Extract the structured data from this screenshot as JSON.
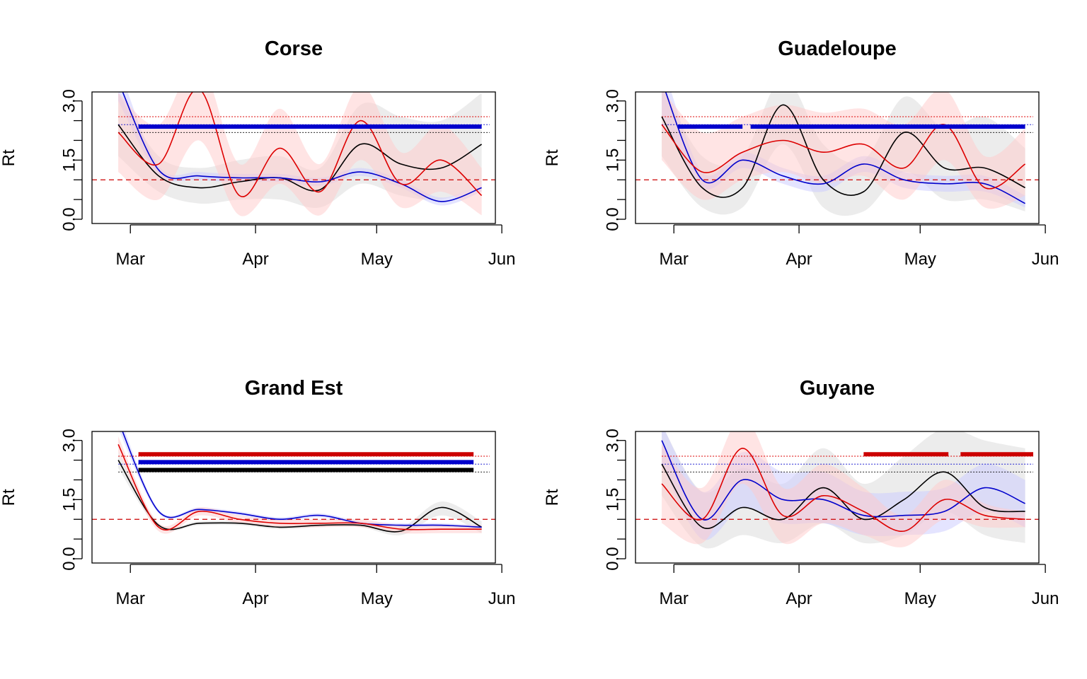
{
  "chart_data": [
    {
      "type": "line",
      "title": "Corse",
      "ylabel": "Rt",
      "ylim": [
        0,
        3
      ],
      "x_ticks": [
        "Mar",
        "Apr",
        "May",
        "Jun"
      ],
      "y_ticks": [
        "0.0",
        "1.5",
        "3.0"
      ],
      "x_days": [
        0,
        10,
        20,
        30,
        40,
        50,
        60,
        70,
        80,
        90
      ],
      "series": [
        {
          "color": "#000000",
          "values": [
            2.4,
            1.1,
            0.8,
            0.95,
            1.05,
            0.75,
            1.9,
            1.4,
            1.3,
            1.9
          ],
          "ci_low": [
            1.6,
            0.7,
            0.4,
            0.5,
            0.5,
            0.3,
            0.9,
            0.6,
            0.5,
            0.9
          ],
          "ci_high": [
            3.2,
            1.6,
            1.3,
            1.5,
            1.6,
            1.3,
            2.9,
            2.6,
            2.5,
            3.2
          ]
        },
        {
          "color": "#0000cc",
          "values": [
            3.5,
            1.25,
            1.1,
            1.05,
            1.05,
            0.95,
            1.2,
            0.9,
            0.45,
            0.8
          ],
          "ci_low": [
            3.0,
            1.15,
            1.0,
            0.95,
            0.95,
            0.85,
            1.1,
            0.8,
            0.35,
            0.7
          ],
          "ci_high": [
            3.9,
            1.35,
            1.2,
            1.15,
            1.15,
            1.05,
            1.3,
            1.0,
            0.55,
            0.9
          ]
        },
        {
          "color": "#dd0000",
          "values": [
            2.2,
            1.4,
            3.3,
            0.6,
            1.8,
            0.7,
            2.5,
            0.9,
            1.5,
            0.6
          ],
          "ci_low": [
            1.2,
            0.5,
            2.0,
            0.1,
            0.9,
            0.1,
            1.5,
            0.3,
            0.7,
            0.1
          ],
          "ci_high": [
            3.2,
            2.4,
            4.0,
            1.4,
            2.8,
            1.4,
            3.4,
            1.7,
            2.4,
            1.3
          ]
        }
      ],
      "segments": [
        {
          "color": "#0000cc",
          "y": 2.35,
          "from": 5,
          "to": 90
        }
      ],
      "dotted_levels": [
        {
          "color": "#dd0000",
          "y": 2.6
        },
        {
          "color": "#0000cc",
          "y": 2.4
        },
        {
          "color": "#000000",
          "y": 2.2
        }
      ],
      "reference_line": 1.0
    },
    {
      "type": "line",
      "title": "Guadeloupe",
      "ylabel": "Rt",
      "ylim": [
        0,
        3
      ],
      "x_ticks": [
        "Mar",
        "Apr",
        "May",
        "Jun"
      ],
      "y_ticks": [
        "0.0",
        "1.5",
        "3.0"
      ],
      "x_days": [
        0,
        10,
        20,
        30,
        40,
        50,
        60,
        70,
        80,
        90
      ],
      "series": [
        {
          "color": "#000000",
          "values": [
            2.6,
            0.8,
            0.8,
            2.9,
            1.0,
            0.7,
            2.2,
            1.3,
            1.3,
            0.8
          ],
          "ci_low": [
            1.6,
            0.3,
            0.3,
            1.9,
            0.3,
            0.2,
            1.2,
            0.5,
            0.5,
            0.2
          ],
          "ci_high": [
            3.4,
            1.6,
            1.6,
            3.6,
            1.9,
            1.5,
            3.1,
            2.3,
            2.6,
            1.8
          ]
        },
        {
          "color": "#0000cc",
          "values": [
            3.5,
            1.0,
            1.5,
            1.1,
            0.9,
            1.4,
            1.0,
            0.9,
            0.9,
            0.4
          ],
          "ci_low": [
            2.6,
            0.8,
            1.3,
            0.9,
            0.7,
            1.2,
            0.8,
            0.7,
            0.7,
            0.3
          ],
          "ci_high": [
            4.0,
            1.2,
            1.7,
            1.3,
            1.1,
            1.6,
            1.2,
            1.1,
            1.1,
            0.6
          ]
        },
        {
          "color": "#dd0000",
          "values": [
            2.4,
            1.2,
            1.7,
            2.0,
            1.7,
            1.9,
            1.3,
            2.4,
            0.8,
            1.4
          ],
          "ci_low": [
            1.5,
            0.5,
            1.0,
            1.2,
            0.9,
            1.1,
            0.5,
            1.5,
            0.3,
            0.6
          ],
          "ci_high": [
            3.3,
            2.2,
            2.6,
            2.9,
            2.7,
            2.8,
            2.4,
            3.3,
            1.6,
            2.3
          ]
        }
      ],
      "segments": [
        {
          "color": "#0000cc",
          "y": 2.35,
          "from": 4,
          "to": 20
        },
        {
          "color": "#0000cc",
          "y": 2.35,
          "from": 22,
          "to": 90
        }
      ],
      "dotted_levels": [
        {
          "color": "#dd0000",
          "y": 2.6
        },
        {
          "color": "#0000cc",
          "y": 2.4
        },
        {
          "color": "#000000",
          "y": 2.2
        }
      ],
      "reference_line": 1.0
    },
    {
      "type": "line",
      "title": "Grand Est",
      "ylabel": "Rt",
      "ylim": [
        0,
        3
      ],
      "x_ticks": [
        "Mar",
        "Apr",
        "May",
        "Jun"
      ],
      "y_ticks": [
        "0.0",
        "1.5",
        "3.0"
      ],
      "x_days": [
        0,
        10,
        20,
        30,
        40,
        50,
        60,
        70,
        80,
        90
      ],
      "series": [
        {
          "color": "#000000",
          "values": [
            2.5,
            0.85,
            0.9,
            0.9,
            0.8,
            0.85,
            0.85,
            0.7,
            1.3,
            0.8
          ],
          "ci_low": [
            2.3,
            0.8,
            0.85,
            0.85,
            0.75,
            0.8,
            0.8,
            0.6,
            1.1,
            0.65
          ],
          "ci_high": [
            2.7,
            0.9,
            0.95,
            0.95,
            0.85,
            0.9,
            0.9,
            0.8,
            1.45,
            0.95
          ]
        },
        {
          "color": "#0000cc",
          "values": [
            3.5,
            1.2,
            1.25,
            1.15,
            1.0,
            1.1,
            0.9,
            0.85,
            0.85,
            0.8
          ],
          "ci_low": [
            3.3,
            1.15,
            1.2,
            1.1,
            0.95,
            1.05,
            0.85,
            0.8,
            0.8,
            0.75
          ],
          "ci_high": [
            3.7,
            1.25,
            1.3,
            1.2,
            1.05,
            1.15,
            0.95,
            0.9,
            0.9,
            0.85
          ]
        },
        {
          "color": "#dd0000",
          "values": [
            2.9,
            0.8,
            1.2,
            1.0,
            0.9,
            0.9,
            0.9,
            0.75,
            0.75,
            0.75
          ],
          "ci_low": [
            2.7,
            0.7,
            1.1,
            0.9,
            0.8,
            0.8,
            0.8,
            0.65,
            0.65,
            0.65
          ],
          "ci_high": [
            3.1,
            0.9,
            1.3,
            1.1,
            1.0,
            1.0,
            1.0,
            0.85,
            0.85,
            0.85
          ]
        }
      ],
      "segments": [
        {
          "color": "#cc0000",
          "y": 2.65,
          "from": 5,
          "to": 88
        },
        {
          "color": "#0000cc",
          "y": 2.45,
          "from": 5,
          "to": 88
        },
        {
          "color": "#000000",
          "y": 2.25,
          "from": 5,
          "to": 88
        }
      ],
      "dotted_levels": [
        {
          "color": "#dd0000",
          "y": 2.6
        },
        {
          "color": "#0000cc",
          "y": 2.4
        },
        {
          "color": "#000000",
          "y": 2.2
        }
      ],
      "reference_line": 1.0
    },
    {
      "type": "line",
      "title": "Guyane",
      "ylabel": "Rt",
      "ylim": [
        0,
        3
      ],
      "x_ticks": [
        "Mar",
        "Apr",
        "May",
        "Jun"
      ],
      "y_ticks": [
        "0.0",
        "1.5",
        "3.0"
      ],
      "x_days": [
        0,
        10,
        20,
        30,
        40,
        50,
        60,
        70,
        80,
        90
      ],
      "series": [
        {
          "color": "#000000",
          "values": [
            2.4,
            0.8,
            1.3,
            1.0,
            1.8,
            1.0,
            1.5,
            2.2,
            1.3,
            1.2
          ],
          "ci_low": [
            1.6,
            0.3,
            0.6,
            0.4,
            0.9,
            0.4,
            0.6,
            1.2,
            0.6,
            0.4
          ],
          "ci_high": [
            3.4,
            1.7,
            2.3,
            1.9,
            2.8,
            1.9,
            2.6,
            3.3,
            3.0,
            2.8
          ]
        },
        {
          "color": "#0000cc",
          "values": [
            3.0,
            1.0,
            2.0,
            1.5,
            1.5,
            1.1,
            1.1,
            1.2,
            1.8,
            1.4
          ],
          "ci_low": [
            2.4,
            0.5,
            1.3,
            0.9,
            0.9,
            0.6,
            0.6,
            0.7,
            1.2,
            0.8
          ],
          "ci_high": [
            3.4,
            1.7,
            2.7,
            2.2,
            2.2,
            1.7,
            1.7,
            1.8,
            2.4,
            2.0
          ]
        },
        {
          "color": "#dd0000",
          "values": [
            1.9,
            1.0,
            2.8,
            1.1,
            1.6,
            1.2,
            0.7,
            1.5,
            1.1,
            1.0
          ],
          "ci_low": [
            0.9,
            0.4,
            1.9,
            0.4,
            0.9,
            0.6,
            0.3,
            1.0,
            0.8,
            0.8
          ],
          "ci_high": [
            2.9,
            1.8,
            3.6,
            1.8,
            2.4,
            1.8,
            1.1,
            2.0,
            1.4,
            1.2
          ]
        }
      ],
      "segments": [
        {
          "color": "#cc0000",
          "y": 2.65,
          "from": 50,
          "to": 71
        },
        {
          "color": "#cc0000",
          "y": 2.65,
          "from": 74,
          "to": 92
        }
      ],
      "dotted_levels": [
        {
          "color": "#dd0000",
          "y": 2.6
        },
        {
          "color": "#0000cc",
          "y": 2.4
        },
        {
          "color": "#000000",
          "y": 2.2
        }
      ],
      "reference_line": 1.0
    }
  ]
}
